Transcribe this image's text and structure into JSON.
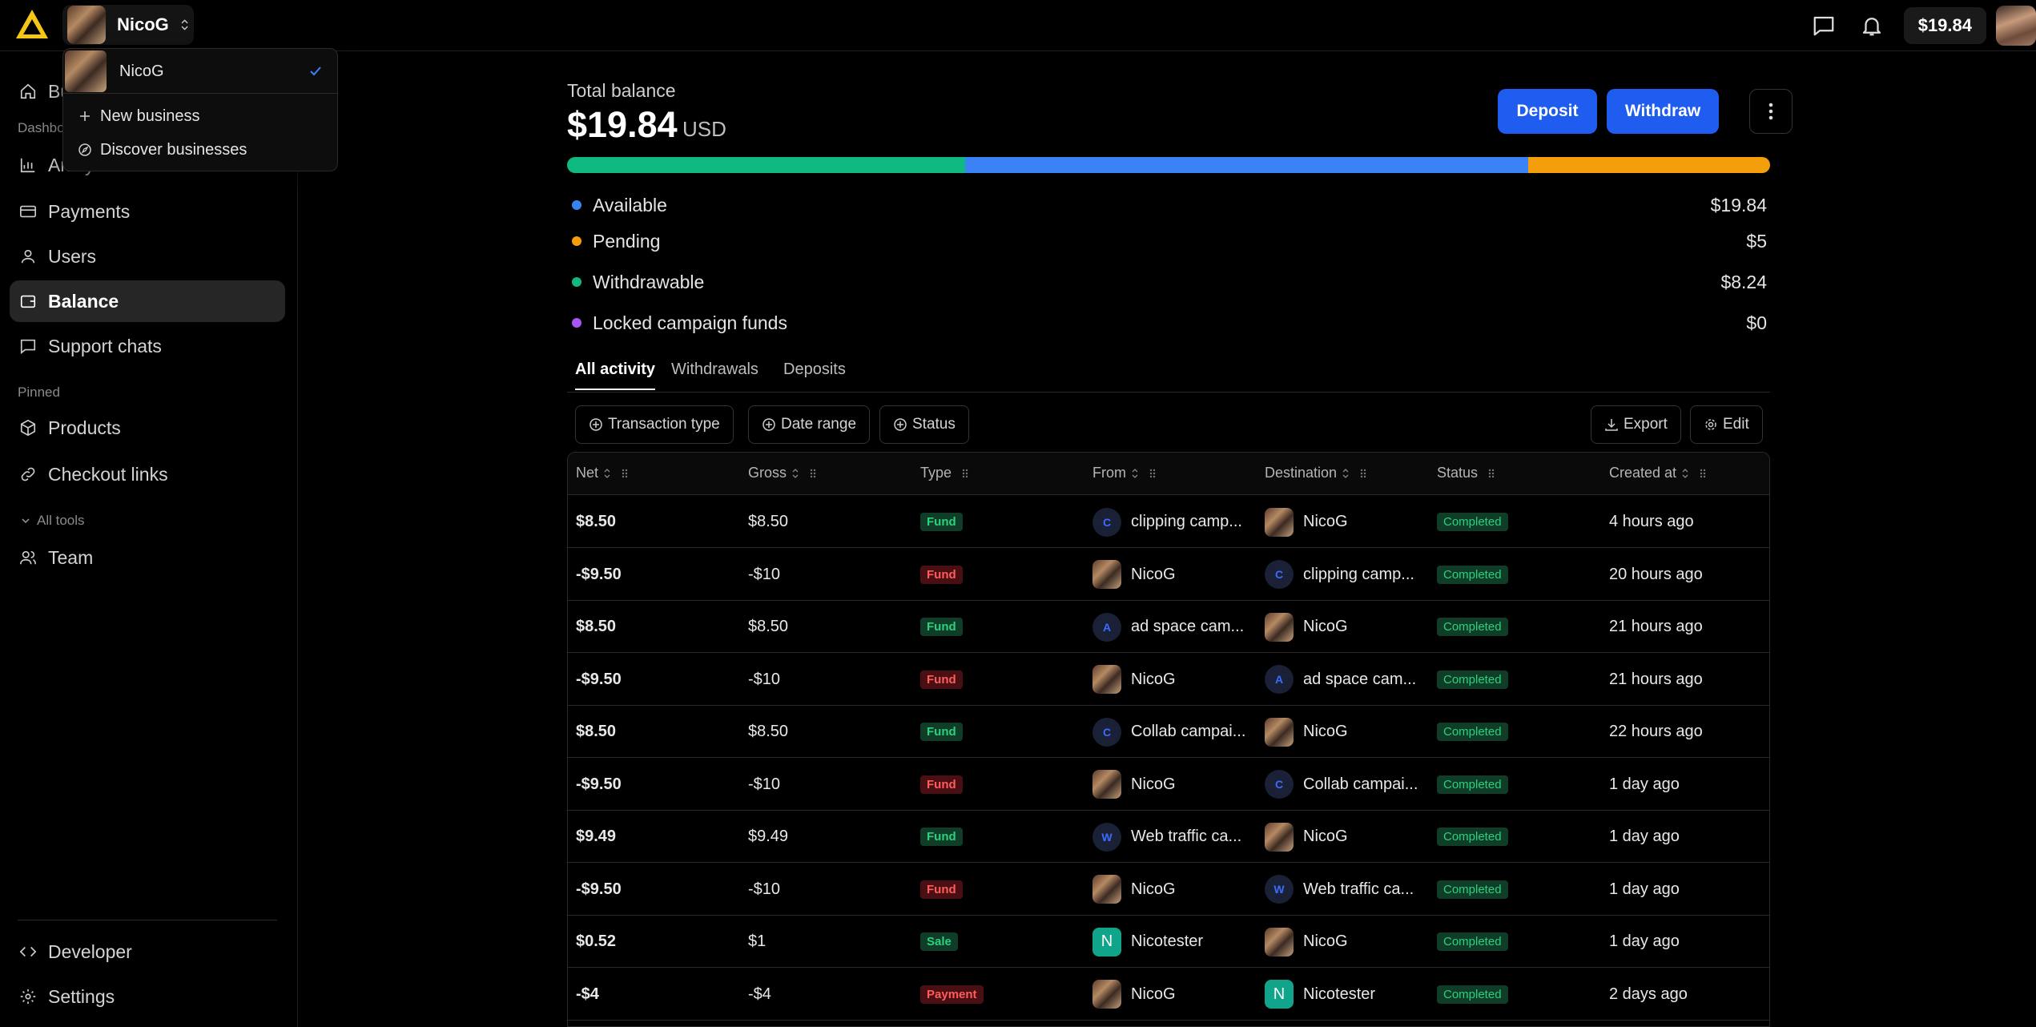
{
  "topbar": {
    "business_name": "NicoG",
    "balance": "$19.84"
  },
  "dropdown": {
    "current": "NicoG",
    "new_business": "New business",
    "discover": "Discover businesses"
  },
  "sidebar": {
    "items": [
      {
        "label": "Bu",
        "icon": "home-icon"
      },
      {
        "label": "Analytics",
        "icon": "chart-icon"
      },
      {
        "label": "Payments",
        "icon": "card-icon"
      },
      {
        "label": "Users",
        "icon": "user-icon"
      },
      {
        "label": "Balance",
        "icon": "wallet-icon"
      },
      {
        "label": "Support chats",
        "icon": "chat-icon"
      },
      {
        "label": "Products",
        "icon": "box-icon"
      },
      {
        "label": "Checkout links",
        "icon": "link-icon"
      },
      {
        "label": "Team",
        "icon": "team-icon"
      },
      {
        "label": "Developer",
        "icon": "code-icon"
      },
      {
        "label": "Settings",
        "icon": "gear-icon"
      }
    ],
    "dashboard_label": "Dashbo",
    "pinned_label": "Pinned",
    "all_tools_label": "All tools"
  },
  "balance": {
    "label": "Total balance",
    "amount": "$19.84",
    "currency": "USD",
    "deposit": "Deposit",
    "withdraw": "Withdraw",
    "colors": {
      "withdrawable": "#10b981",
      "available": "#3b82f6",
      "pending": "#f59e0b",
      "locked": "#a855f7"
    },
    "breakdown": [
      {
        "label": "Available",
        "value": "$19.84",
        "color": "#3b82f6"
      },
      {
        "label": "Pending",
        "value": "$5",
        "color": "#f59e0b"
      },
      {
        "label": "Withdrawable",
        "value": "$8.24",
        "color": "#10b981"
      },
      {
        "label": "Locked campaign funds",
        "value": "$0",
        "color": "#a855f7"
      }
    ]
  },
  "tabs": [
    "All activity",
    "Withdrawals",
    "Deposits"
  ],
  "filters": {
    "transaction_type": "Transaction type",
    "date_range": "Date range",
    "status": "Status",
    "export": "Export",
    "edit": "Edit"
  },
  "table": {
    "headers": [
      "Net",
      "Gross",
      "Type",
      "From",
      "Destination",
      "Status",
      "Created at"
    ],
    "rows": [
      {
        "net": "$8.50",
        "gross": "$8.50",
        "type": "Fund",
        "type_kind": "fund-pos",
        "from": "clipping camp...",
        "from_kind": "letter",
        "from_letter": "C",
        "dest": "NicoG",
        "dest_kind": "photo",
        "dest_letter": "",
        "status": "Completed",
        "created": "4 hours ago"
      },
      {
        "net": "-$9.50",
        "gross": "-$10",
        "type": "Fund",
        "type_kind": "fund-neg",
        "from": "NicoG",
        "from_kind": "photo",
        "from_letter": "",
        "dest": "clipping camp...",
        "dest_kind": "letter",
        "dest_letter": "C",
        "status": "Completed",
        "created": "20 hours ago"
      },
      {
        "net": "$8.50",
        "gross": "$8.50",
        "type": "Fund",
        "type_kind": "fund-pos",
        "from": "ad space cam...",
        "from_kind": "letter",
        "from_letter": "A",
        "dest": "NicoG",
        "dest_kind": "photo",
        "dest_letter": "",
        "status": "Completed",
        "created": "21 hours ago"
      },
      {
        "net": "-$9.50",
        "gross": "-$10",
        "type": "Fund",
        "type_kind": "fund-neg",
        "from": "NicoG",
        "from_kind": "photo",
        "from_letter": "",
        "dest": "ad space cam...",
        "dest_kind": "letter",
        "dest_letter": "A",
        "status": "Completed",
        "created": "21 hours ago"
      },
      {
        "net": "$8.50",
        "gross": "$8.50",
        "type": "Fund",
        "type_kind": "fund-pos",
        "from": "Collab campai...",
        "from_kind": "letter",
        "from_letter": "C",
        "dest": "NicoG",
        "dest_kind": "photo",
        "dest_letter": "",
        "status": "Completed",
        "created": "22 hours ago"
      },
      {
        "net": "-$9.50",
        "gross": "-$10",
        "type": "Fund",
        "type_kind": "fund-neg",
        "from": "NicoG",
        "from_kind": "photo",
        "from_letter": "",
        "dest": "Collab campai...",
        "dest_kind": "letter",
        "dest_letter": "C",
        "status": "Completed",
        "created": "1 day ago"
      },
      {
        "net": "$9.49",
        "gross": "$9.49",
        "type": "Fund",
        "type_kind": "fund-pos",
        "from": "Web traffic ca...",
        "from_kind": "letter",
        "from_letter": "W",
        "dest": "NicoG",
        "dest_kind": "photo",
        "dest_letter": "",
        "status": "Completed",
        "created": "1 day ago"
      },
      {
        "net": "-$9.50",
        "gross": "-$10",
        "type": "Fund",
        "type_kind": "fund-neg",
        "from": "NicoG",
        "from_kind": "photo",
        "from_letter": "",
        "dest": "Web traffic ca...",
        "dest_kind": "letter",
        "dest_letter": "W",
        "status": "Completed",
        "created": "1 day ago"
      },
      {
        "net": "$0.52",
        "gross": "$1",
        "type": "Sale",
        "type_kind": "sale",
        "from": "Nicotester",
        "from_kind": "n",
        "from_letter": "N",
        "dest": "NicoG",
        "dest_kind": "photo",
        "dest_letter": "",
        "status": "Completed",
        "created": "1 day ago"
      },
      {
        "net": "-$4",
        "gross": "-$4",
        "type": "Payment",
        "type_kind": "payment",
        "from": "NicoG",
        "from_kind": "photo",
        "from_letter": "",
        "dest": "Nicotester",
        "dest_kind": "n",
        "dest_letter": "N",
        "status": "Completed",
        "created": "2 days ago"
      }
    ]
  }
}
